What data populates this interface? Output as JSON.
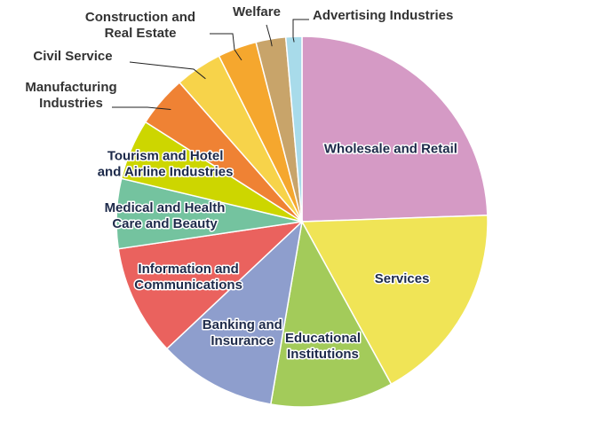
{
  "chart_data": {
    "type": "pie",
    "start_angle_deg": 0,
    "direction": "clockwise",
    "slices": [
      {
        "label": "Wholesale and Retail",
        "lines": [
          "Wholesale and Retail"
        ],
        "value": 24.5,
        "color": "#d59ac5",
        "label_pos": "inside"
      },
      {
        "label": "Services",
        "lines": [
          "Services"
        ],
        "value": 17.6,
        "color": "#f0e456",
        "label_pos": "inside"
      },
      {
        "label": "Educational Institutions",
        "lines": [
          "Educational",
          "Institutions"
        ],
        "value": 10.7,
        "color": "#a3cb5a",
        "label_pos": "inside"
      },
      {
        "label": "Banking and Insurance",
        "lines": [
          "Banking and",
          "Insurance"
        ],
        "value": 10.3,
        "color": "#8e9ecd",
        "label_pos": "inside"
      },
      {
        "label": "Information and Communications",
        "lines": [
          "Information and",
          "Communications"
        ],
        "value": 9.7,
        "color": "#ea625e",
        "label_pos": "inside"
      },
      {
        "label": "Medical and Health Care and Beauty",
        "lines": [
          "Medical and Health",
          "Care and Beauty"
        ],
        "value": 6.1,
        "color": "#74c39f",
        "label_pos": "inside"
      },
      {
        "label": "Tourism and Hotel and Airline Industries",
        "lines": [
          "Tourism and Hotel",
          "and Airline Industries"
        ],
        "value": 5.3,
        "color": "#cdd600",
        "label_pos": "inside"
      },
      {
        "label": "Manufacturing Industries",
        "lines": [
          "Manufacturing",
          "Industries"
        ],
        "value": 4.5,
        "color": "#ef8234",
        "label_pos": "outside"
      },
      {
        "label": "Civil Service",
        "lines": [
          "Civil Service"
        ],
        "value": 4.1,
        "color": "#f7d34a",
        "label_pos": "outside"
      },
      {
        "label": "Construction and Real Estate",
        "lines": [
          "Construction and",
          "Real Estate"
        ],
        "value": 3.4,
        "color": "#f5a72e",
        "label_pos": "outside"
      },
      {
        "label": "Welfare",
        "lines": [
          "Welfare"
        ],
        "value": 2.6,
        "color": "#c8a46a",
        "label_pos": "outside"
      },
      {
        "label": "Advertising Industries",
        "lines": [
          "Advertising Industries"
        ],
        "value": 1.4,
        "color": "#a8dbea",
        "label_pos": "outside"
      }
    ]
  }
}
